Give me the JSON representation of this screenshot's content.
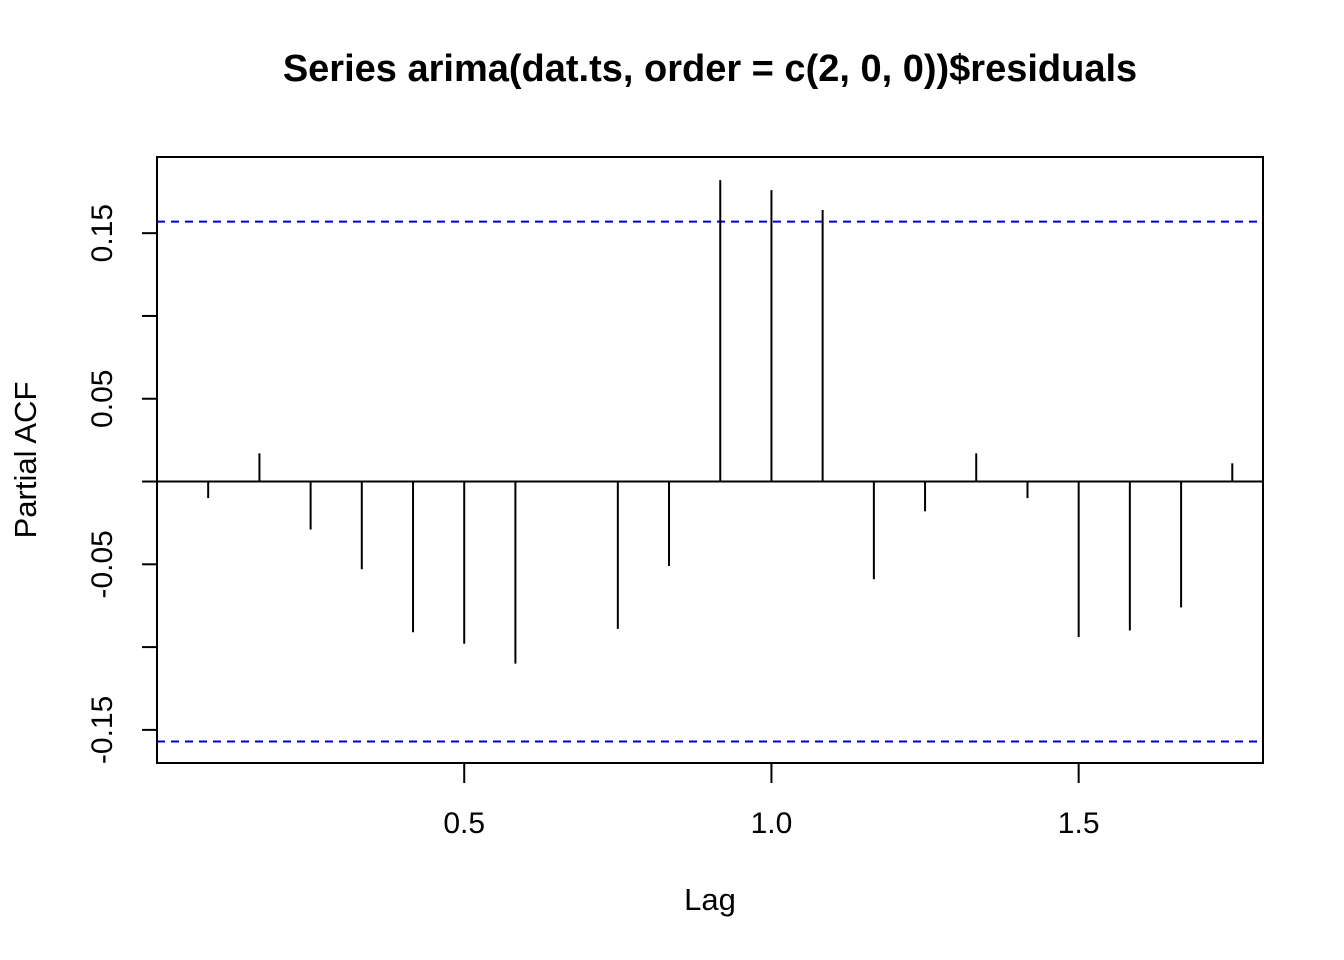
{
  "chart_data": {
    "type": "bar",
    "style": "pacf-spikes",
    "title": "Series  arima(dat.ts, order = c(2, 0, 0))$residuals",
    "xlabel": "Lag",
    "ylabel": "Partial ACF",
    "xlim": [
      0.0,
      1.8
    ],
    "ylim": [
      -0.17,
      0.196
    ],
    "x_ticks": [
      0.5,
      1.0,
      1.5
    ],
    "x_tick_labels": [
      "0.5",
      "1.0",
      "1.5"
    ],
    "y_ticks": [
      -0.15,
      -0.1,
      -0.05,
      0.0,
      0.05,
      0.1,
      0.15
    ],
    "y_tick_labels": [
      "-0.15",
      "",
      "-0.05",
      "",
      "0.05",
      "",
      "0.15"
    ],
    "confidence_bound": 0.157,
    "confidence_color": "#0000cc",
    "spike_color": "#000000",
    "lags": [
      0.0833,
      0.1667,
      0.25,
      0.3333,
      0.4167,
      0.5,
      0.5833,
      0.6667,
      0.75,
      0.8333,
      0.9167,
      1.0,
      1.0833,
      1.1667,
      1.25,
      1.3333,
      1.4167,
      1.5,
      1.5833,
      1.6667,
      1.75
    ],
    "values": [
      -0.01,
      0.017,
      -0.029,
      -0.053,
      -0.091,
      -0.098,
      -0.11,
      0.0,
      -0.089,
      -0.051,
      0.182,
      0.176,
      0.164,
      -0.059,
      -0.018,
      0.017,
      -0.01,
      -0.094,
      -0.09,
      -0.076,
      0.011
    ]
  }
}
